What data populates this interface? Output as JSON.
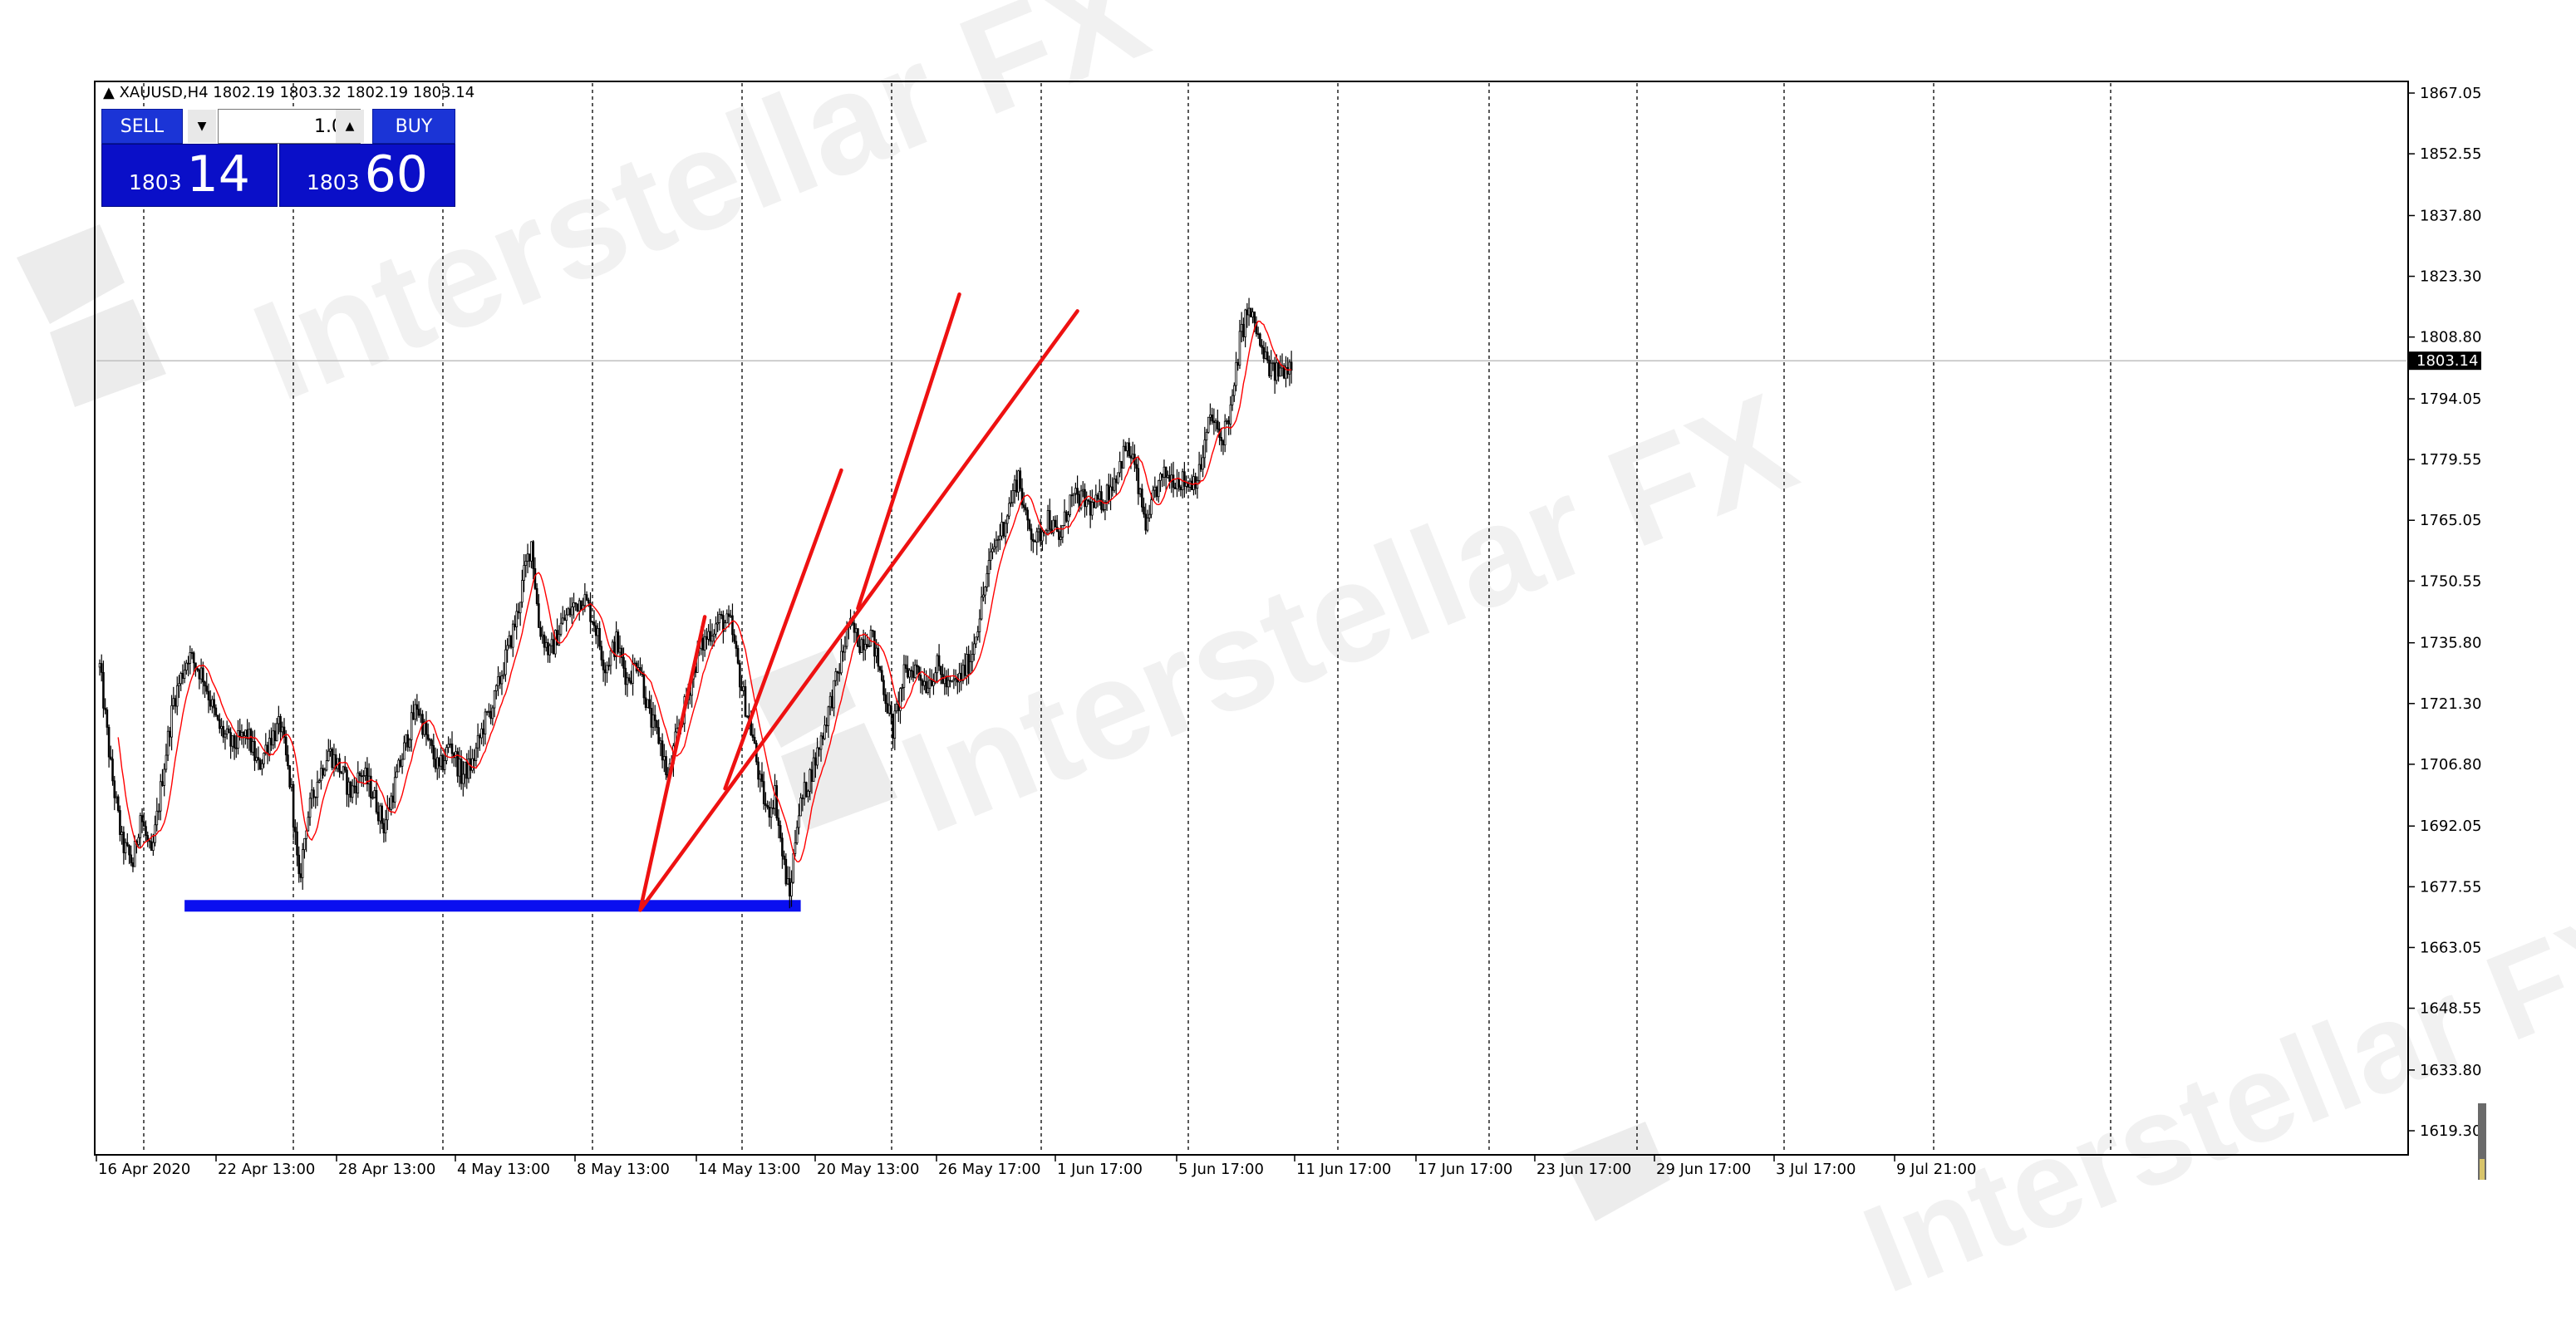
{
  "symbol_line": "XAUUSD,H4  1802.19 1803.32 1802.19 1803.14",
  "trade_panel": {
    "sell_label": "SELL",
    "buy_label": "BUY",
    "lots": "1.00",
    "sell_price_small": "1803",
    "sell_price_big": "14",
    "buy_price_small": "1803",
    "buy_price_big": "60"
  },
  "watermark_text": "Interstellar FX",
  "colors": {
    "bull_candle": "#ffffff",
    "bear_candle": "#000000",
    "moving_average": "#ff0000",
    "trendline": "#ee1111",
    "support_zone": "#0a0ff0",
    "bid_line": "#c0c0c0",
    "current_price_tag": "#000000"
  },
  "chart_data": {
    "type": "candlestick",
    "instrument": "XAUUSD",
    "timeframe": "H4",
    "current_price": "1803.14",
    "y_ticks": [
      "1867.05",
      "1852.55",
      "1837.80",
      "1823.30",
      "1808.80",
      "1794.05",
      "1779.55",
      "1765.05",
      "1750.55",
      "1735.80",
      "1721.30",
      "1706.80",
      "1692.05",
      "1677.55",
      "1663.05",
      "1648.55",
      "1633.80",
      "1619.30"
    ],
    "x_ticks": [
      "16 Apr 2020",
      "22 Apr 13:00",
      "28 Apr 13:00",
      "4 May 13:00",
      "8 May 13:00",
      "14 May 13:00",
      "20 May 13:00",
      "26 May 17:00",
      "1 Jun 17:00",
      "5 Jun 17:00",
      "11 Jun 17:00",
      "17 Jun 17:00",
      "23 Jun 17:00",
      "29 Jun 17:00",
      "3 Jul 17:00",
      "9 Jul 21:00"
    ],
    "ylim": [
      1615,
      1870
    ],
    "grid": "vertical dashed at each time label",
    "price_path": [
      [
        0,
        1730
      ],
      [
        6,
        1706
      ],
      [
        12,
        1688
      ],
      [
        18,
        1683
      ],
      [
        22,
        1695
      ],
      [
        28,
        1684
      ],
      [
        34,
        1704
      ],
      [
        40,
        1722
      ],
      [
        48,
        1733
      ],
      [
        56,
        1728
      ],
      [
        64,
        1716
      ],
      [
        72,
        1711
      ],
      [
        80,
        1714
      ],
      [
        86,
        1706
      ],
      [
        92,
        1713
      ],
      [
        98,
        1716
      ],
      [
        104,
        1700
      ],
      [
        108,
        1678
      ],
      [
        112,
        1693
      ],
      [
        118,
        1703
      ],
      [
        124,
        1710
      ],
      [
        130,
        1706
      ],
      [
        136,
        1700
      ],
      [
        142,
        1705
      ],
      [
        148,
        1700
      ],
      [
        154,
        1692
      ],
      [
        160,
        1702
      ],
      [
        166,
        1712
      ],
      [
        172,
        1721
      ],
      [
        178,
        1712
      ],
      [
        184,
        1705
      ],
      [
        190,
        1712
      ],
      [
        196,
        1704
      ],
      [
        202,
        1707
      ],
      [
        208,
        1716
      ],
      [
        214,
        1722
      ],
      [
        220,
        1732
      ],
      [
        226,
        1742
      ],
      [
        230,
        1752
      ],
      [
        234,
        1760
      ],
      [
        238,
        1740
      ],
      [
        244,
        1733
      ],
      [
        250,
        1740
      ],
      [
        256,
        1744
      ],
      [
        262,
        1747
      ],
      [
        268,
        1741
      ],
      [
        274,
        1730
      ],
      [
        280,
        1736
      ],
      [
        286,
        1727
      ],
      [
        292,
        1732
      ],
      [
        298,
        1718
      ],
      [
        304,
        1712
      ],
      [
        308,
        1703
      ],
      [
        312,
        1712
      ],
      [
        318,
        1722
      ],
      [
        324,
        1733
      ],
      [
        330,
        1738
      ],
      [
        336,
        1741
      ],
      [
        342,
        1740
      ],
      [
        348,
        1725
      ],
      [
        354,
        1713
      ],
      [
        358,
        1702
      ],
      [
        362,
        1695
      ],
      [
        366,
        1700
      ],
      [
        370,
        1685
      ],
      [
        374,
        1675
      ],
      [
        378,
        1694
      ],
      [
        382,
        1700
      ],
      [
        388,
        1708
      ],
      [
        394,
        1718
      ],
      [
        400,
        1728
      ],
      [
        406,
        1740
      ],
      [
        412,
        1736
      ],
      [
        418,
        1738
      ],
      [
        424,
        1727
      ],
      [
        430,
        1715
      ],
      [
        436,
        1728
      ],
      [
        442,
        1730
      ],
      [
        448,
        1726
      ],
      [
        454,
        1730
      ],
      [
        460,
        1725
      ],
      [
        466,
        1727
      ],
      [
        472,
        1732
      ],
      [
        478,
        1745
      ],
      [
        484,
        1758
      ],
      [
        490,
        1764
      ],
      [
        494,
        1770
      ],
      [
        498,
        1776
      ],
      [
        502,
        1765
      ],
      [
        508,
        1760
      ],
      [
        514,
        1766
      ],
      [
        520,
        1760
      ],
      [
        526,
        1770
      ],
      [
        532,
        1770
      ],
      [
        538,
        1768
      ],
      [
        544,
        1770
      ],
      [
        550,
        1775
      ],
      [
        556,
        1782
      ],
      [
        560,
        1780
      ],
      [
        564,
        1770
      ],
      [
        568,
        1763
      ],
      [
        572,
        1772
      ],
      [
        578,
        1776
      ],
      [
        584,
        1775
      ],
      [
        590,
        1774
      ],
      [
        596,
        1776
      ],
      [
        602,
        1790
      ],
      [
        608,
        1784
      ],
      [
        614,
        1793
      ],
      [
        618,
        1808
      ],
      [
        622,
        1815
      ],
      [
        626,
        1812
      ],
      [
        630,
        1805
      ],
      [
        636,
        1800
      ],
      [
        640,
        1801
      ],
      [
        644,
        1802
      ],
      [
        646,
        1803.14
      ]
    ],
    "bar_count": 647,
    "annotations": [
      {
        "type": "support_zone",
        "price": 1673,
        "from": 46,
        "to": 380
      },
      {
        "type": "trendline",
        "from": [
          293,
          1672
        ],
        "to": [
          328,
          1742
        ]
      },
      {
        "type": "trendline",
        "from": [
          339,
          1701
        ],
        "to": [
          402,
          1777
        ]
      },
      {
        "type": "trendline",
        "from": [
          411,
          1744
        ],
        "to": [
          466,
          1819
        ]
      },
      {
        "type": "trendline",
        "from": [
          293,
          1672
        ],
        "to": [
          530,
          1815
        ]
      }
    ]
  }
}
